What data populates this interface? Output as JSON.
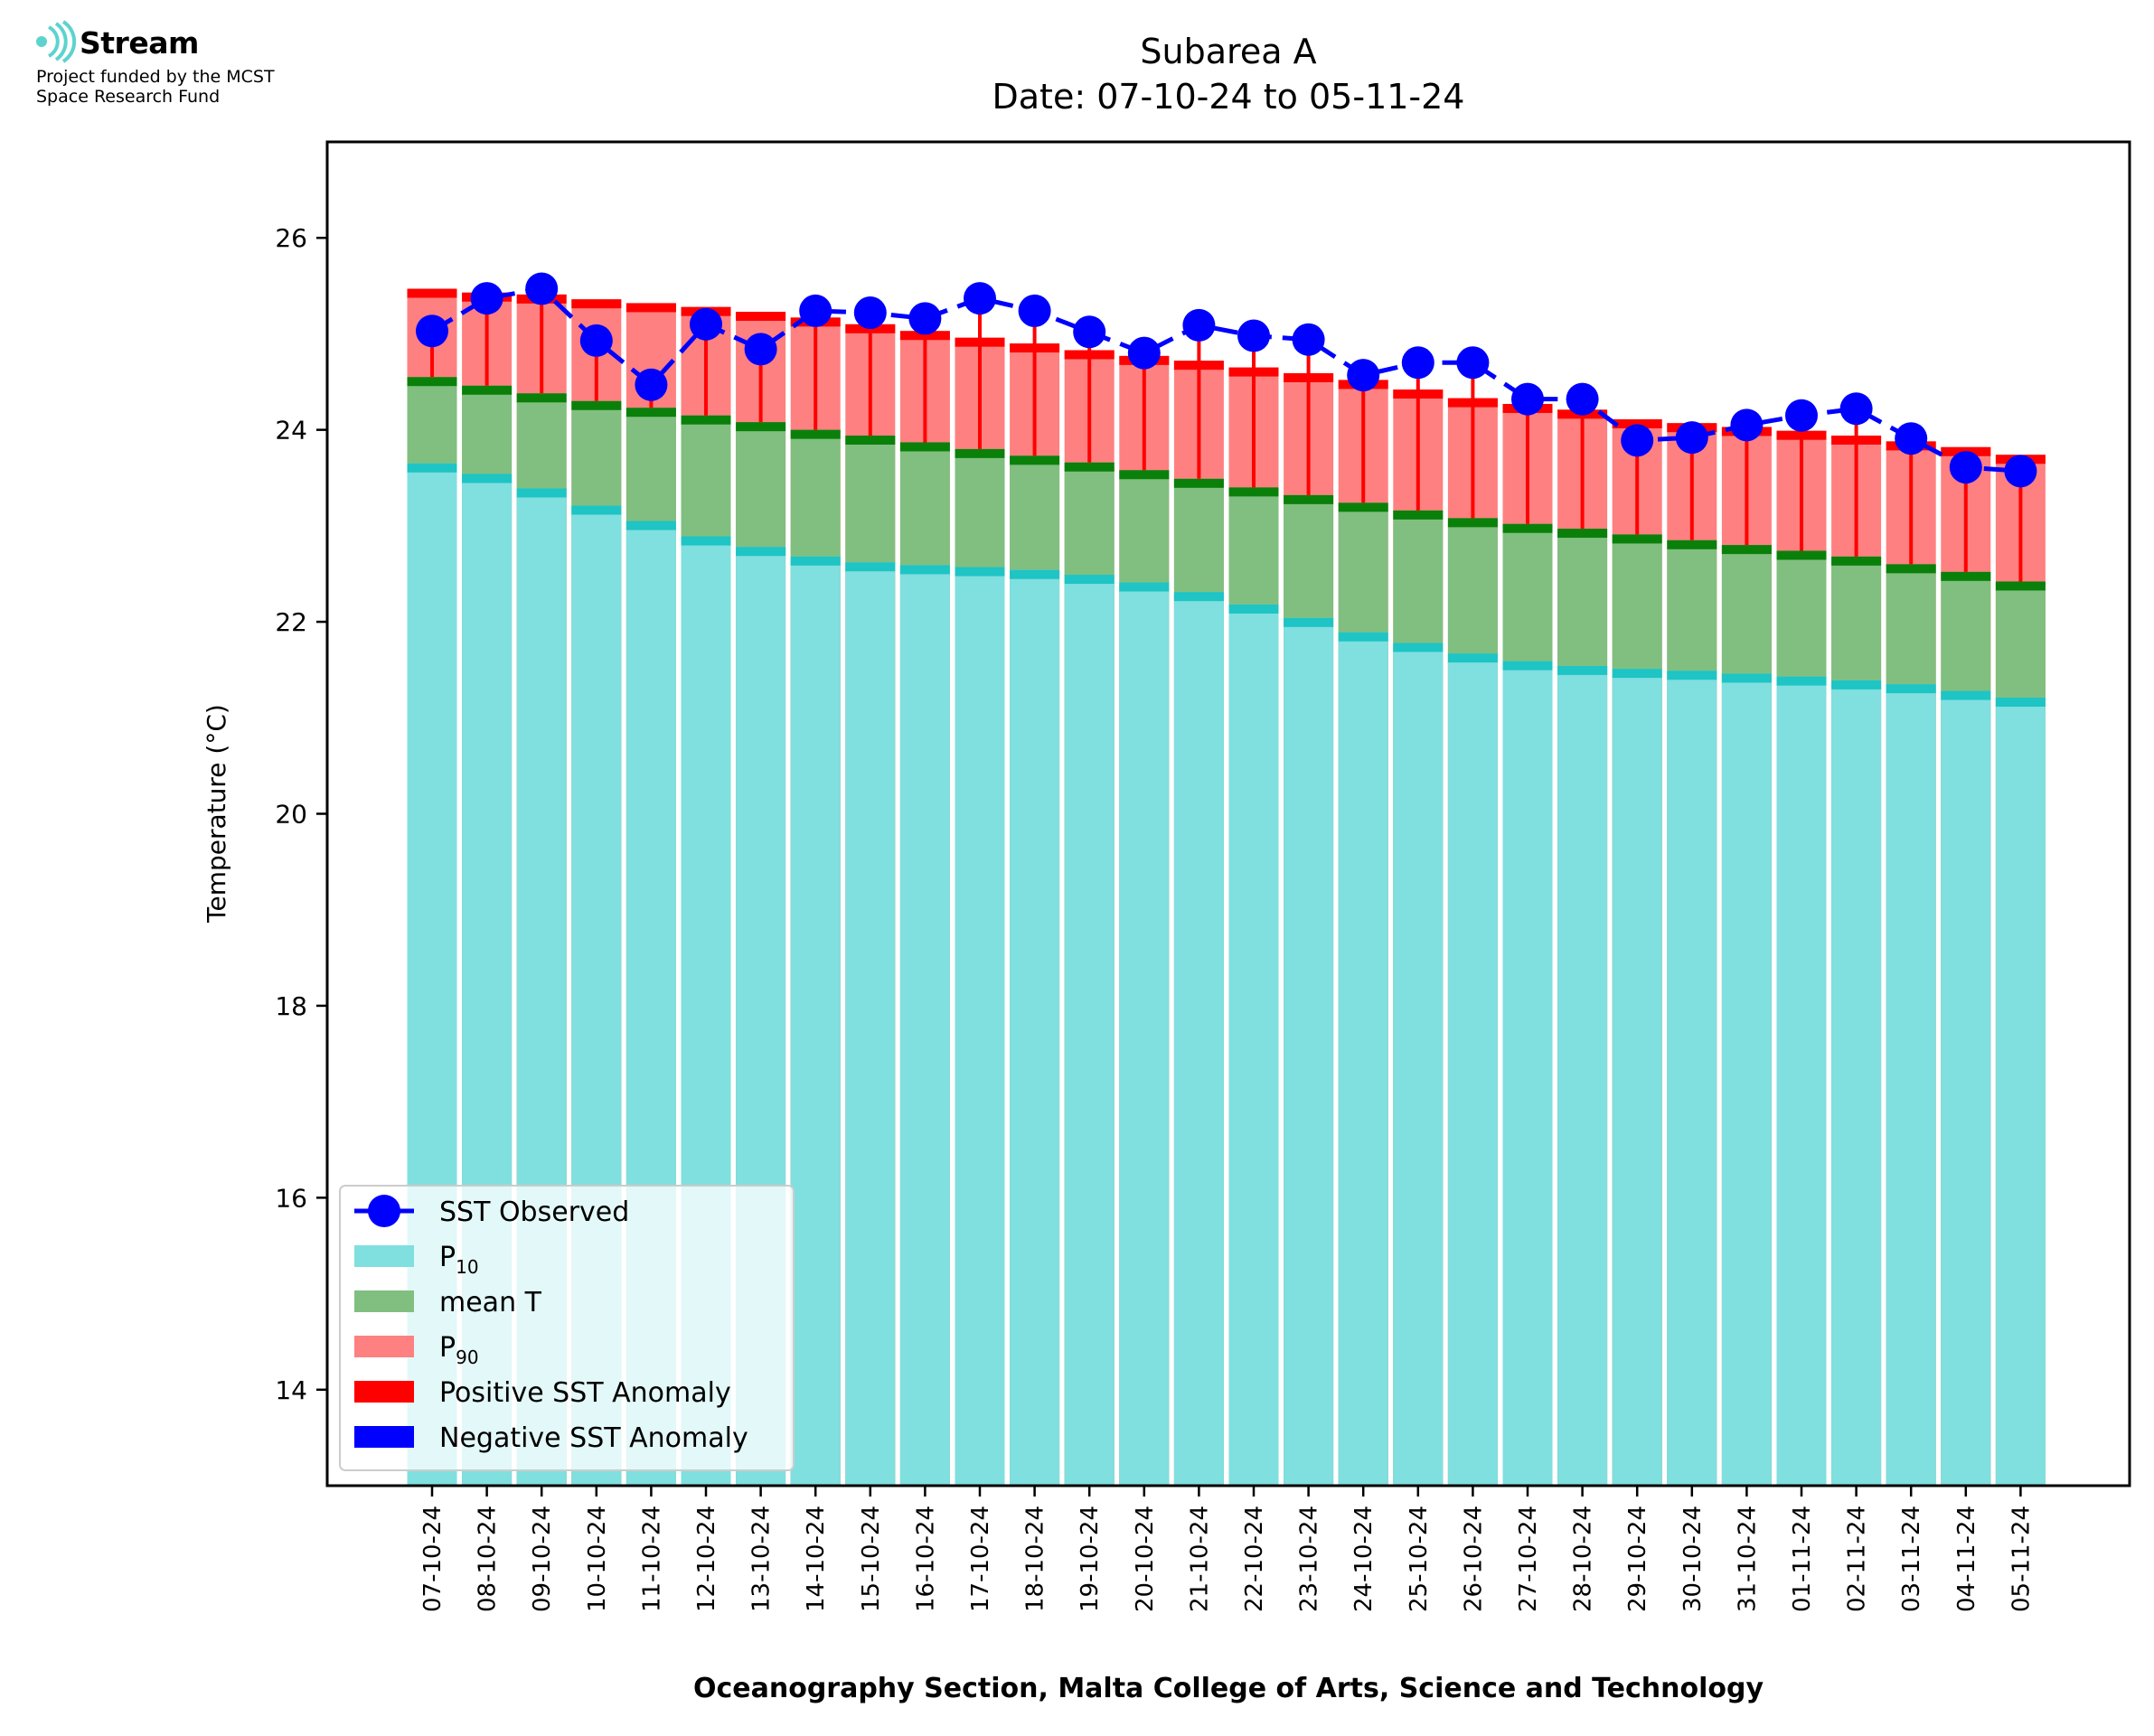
{
  "logo": {
    "name": "Stream",
    "subtitle_line1": "Project funded by the MCST",
    "subtitle_line2": "Space Research Fund",
    "color": "#5dd3cf"
  },
  "chart_data": {
    "type": "bar",
    "title": "Subarea A",
    "subtitle": "Date: 07-10-24 to 05-11-24",
    "xlabel": "Oceanography Section, Malta College of Arts, Science and Technology",
    "ylabel": "Temperature (°C)",
    "ylim": [
      13.0,
      27.0
    ],
    "yticks": [
      14,
      16,
      18,
      20,
      22,
      24,
      26
    ],
    "grid": false,
    "legend_position": "lower-left",
    "categories": [
      "07-10-24",
      "08-10-24",
      "09-10-24",
      "10-10-24",
      "11-10-24",
      "12-10-24",
      "13-10-24",
      "14-10-24",
      "15-10-24",
      "16-10-24",
      "17-10-24",
      "18-10-24",
      "19-10-24",
      "20-10-24",
      "21-10-24",
      "22-10-24",
      "23-10-24",
      "24-10-24",
      "25-10-24",
      "26-10-24",
      "27-10-24",
      "28-10-24",
      "29-10-24",
      "30-10-24",
      "31-10-24",
      "01-11-24",
      "02-11-24",
      "03-11-24",
      "04-11-24",
      "05-11-24"
    ],
    "series": [
      {
        "name": "P",
        "name_sub": "10",
        "kind": "bar",
        "color": "#80dfdf",
        "edge_color": "#1fc4c4",
        "values": [
          23.65,
          23.54,
          23.39,
          23.21,
          23.05,
          22.89,
          22.78,
          22.68,
          22.62,
          22.59,
          22.57,
          22.54,
          22.49,
          22.41,
          22.31,
          22.18,
          22.04,
          21.89,
          21.78,
          21.67,
          21.59,
          21.54,
          21.51,
          21.49,
          21.46,
          21.43,
          21.39,
          21.35,
          21.28,
          21.21
        ]
      },
      {
        "name": "mean T",
        "kind": "bar",
        "color": "#80bf80",
        "edge_color": "#0a800a",
        "values": [
          24.55,
          24.46,
          24.38,
          24.3,
          24.23,
          24.15,
          24.08,
          24.0,
          23.94,
          23.87,
          23.8,
          23.73,
          23.66,
          23.58,
          23.49,
          23.4,
          23.32,
          23.24,
          23.16,
          23.08,
          23.02,
          22.97,
          22.91,
          22.85,
          22.8,
          22.74,
          22.68,
          22.6,
          22.52,
          22.42
        ]
      },
      {
        "name": "P",
        "name_sub": "90",
        "kind": "bar",
        "color": "#ff8080",
        "edge_color": "#ff0000",
        "values": [
          25.47,
          25.43,
          25.41,
          25.36,
          25.32,
          25.28,
          25.23,
          25.17,
          25.1,
          25.03,
          24.96,
          24.9,
          24.83,
          24.77,
          24.72,
          24.65,
          24.59,
          24.52,
          24.42,
          24.33,
          24.27,
          24.21,
          24.11,
          24.07,
          24.03,
          23.99,
          23.94,
          23.88,
          23.82,
          23.74
        ]
      },
      {
        "name": "SST Observed",
        "kind": "line",
        "color": "#0000ff",
        "values": [
          25.03,
          25.37,
          25.47,
          24.93,
          24.47,
          25.1,
          24.84,
          25.24,
          25.22,
          25.16,
          25.37,
          25.24,
          25.02,
          24.8,
          25.09,
          24.98,
          24.94,
          24.57,
          24.7,
          24.7,
          24.32,
          24.32,
          23.89,
          23.92,
          24.05,
          24.15,
          24.22,
          23.91,
          23.61,
          23.57
        ]
      }
    ],
    "anomaly_legend": [
      {
        "name": "Positive SST Anomaly",
        "color": "#ff0000"
      },
      {
        "name": "Negative SST Anomaly",
        "color": "#0000ff"
      }
    ]
  }
}
